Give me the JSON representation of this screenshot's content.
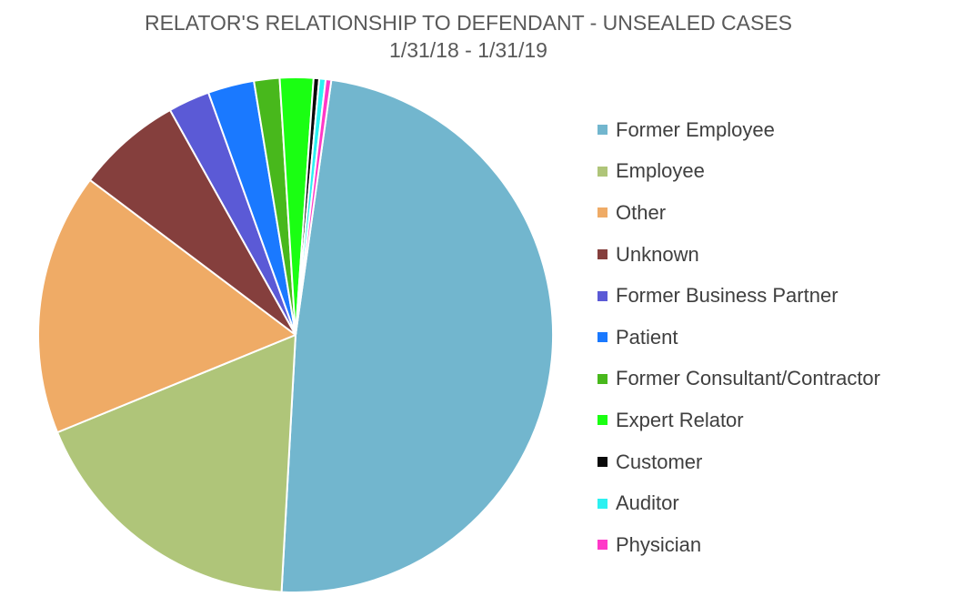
{
  "chart_data": {
    "type": "pie",
    "title": "RELATOR'S RELATIONSHIP TO DEFENDANT - UNSEALED CASES",
    "subtitle": "1/31/18 - 1/31/19",
    "legend_position": "right",
    "start_angle_deg": 82,
    "slices": [
      {
        "label": "Former Employee",
        "value": 48.5,
        "color": "#72b6ce"
      },
      {
        "label": "Employee",
        "value": 17.9,
        "color": "#afc579"
      },
      {
        "label": "Other",
        "value": 16.4,
        "color": "#efab66"
      },
      {
        "label": "Unknown",
        "value": 6.6,
        "color": "#853f3d"
      },
      {
        "label": "Former Business Partner",
        "value": 2.6,
        "color": "#5b5ad6"
      },
      {
        "label": "Patient",
        "value": 2.9,
        "color": "#1a79ff"
      },
      {
        "label": "Former Consultant/Contractor",
        "value": 1.6,
        "color": "#48b81c"
      },
      {
        "label": "Expert Relator",
        "value": 2.1,
        "color": "#1aff12"
      },
      {
        "label": "Customer",
        "value": 0.35,
        "color": "#0a0a0a"
      },
      {
        "label": "Auditor",
        "value": 0.4,
        "color": "#2cf1f1"
      },
      {
        "label": "Physician",
        "value": 0.35,
        "color": "#ff38c8"
      }
    ]
  }
}
